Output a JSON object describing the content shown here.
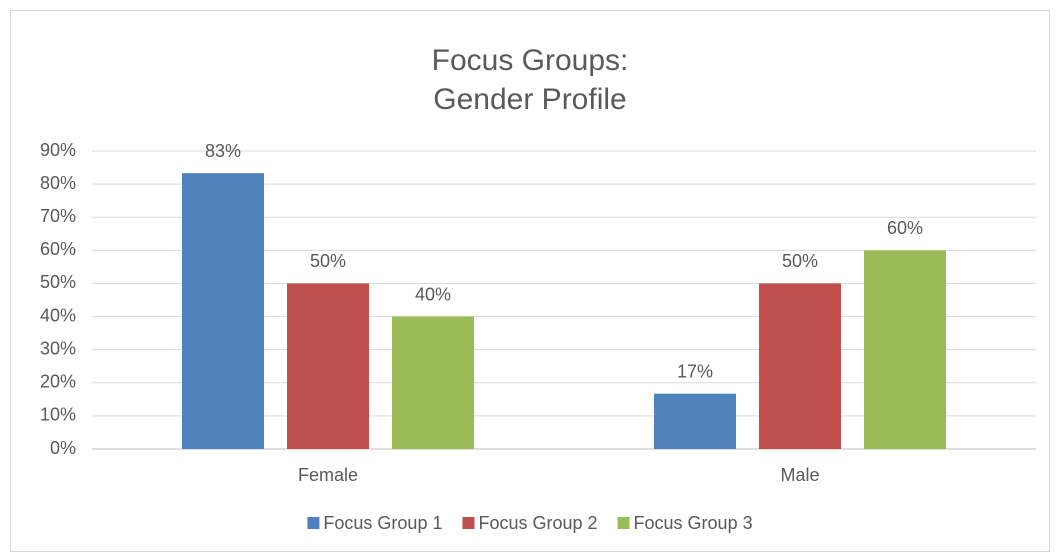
{
  "chart_data": {
    "type": "bar",
    "title": [
      "Focus Groups:",
      "Gender Profile"
    ],
    "categories": [
      "Female",
      "Male"
    ],
    "series": [
      {
        "name": "Focus Group 1",
        "color": "#4f81bd",
        "values": [
          83.3,
          16.7
        ],
        "value_labels": [
          "83%",
          "17%"
        ]
      },
      {
        "name": "Focus Group 2",
        "color": "#c0504d",
        "values": [
          50,
          50
        ],
        "value_labels": [
          "50%",
          "50%"
        ]
      },
      {
        "name": "Focus Group 3",
        "color": "#9bbb59",
        "values": [
          40,
          60
        ],
        "value_labels": [
          "40%",
          "60%"
        ]
      }
    ],
    "ylim": [
      0,
      90
    ],
    "yticks": [
      {
        "value": 0,
        "label": "0%"
      },
      {
        "value": 10,
        "label": "10%"
      },
      {
        "value": 20,
        "label": "20%"
      },
      {
        "value": 30,
        "label": "30%"
      },
      {
        "value": 40,
        "label": "40%"
      },
      {
        "value": 50,
        "label": "50%"
      },
      {
        "value": 60,
        "label": "60%"
      },
      {
        "value": 70,
        "label": "70%"
      },
      {
        "value": 80,
        "label": "80%"
      },
      {
        "value": 90,
        "label": "90%"
      }
    ],
    "grid": true,
    "legend": "bottom"
  }
}
